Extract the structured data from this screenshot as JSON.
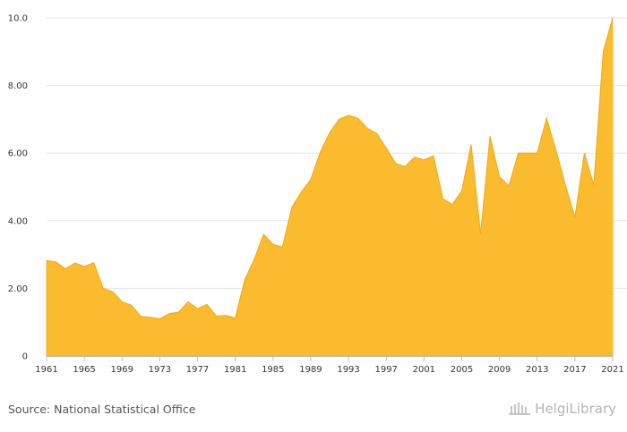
{
  "chart_data": {
    "type": "area",
    "title": "",
    "xlabel": "",
    "ylabel": "",
    "x": [
      1961,
      1962,
      1963,
      1964,
      1965,
      1966,
      1967,
      1968,
      1969,
      1970,
      1971,
      1972,
      1973,
      1974,
      1975,
      1976,
      1977,
      1978,
      1979,
      1980,
      1981,
      1982,
      1983,
      1984,
      1985,
      1986,
      1987,
      1988,
      1989,
      1990,
      1991,
      1992,
      1993,
      1994,
      1995,
      1996,
      1997,
      1998,
      1999,
      2000,
      2001,
      2002,
      2003,
      2004,
      2005,
      2006,
      2007,
      2008,
      2009,
      2010,
      2011,
      2012,
      2013,
      2014,
      2015,
      2016,
      2017,
      2018,
      2019,
      2020,
      2021
    ],
    "values": [
      2.82,
      2.78,
      2.58,
      2.75,
      2.65,
      2.76,
      2.0,
      1.9,
      1.6,
      1.5,
      1.17,
      1.14,
      1.1,
      1.25,
      1.3,
      1.6,
      1.4,
      1.52,
      1.18,
      1.2,
      1.12,
      2.25,
      2.85,
      3.6,
      3.3,
      3.22,
      4.4,
      4.85,
      5.22,
      6.02,
      6.6,
      7.0,
      7.12,
      7.03,
      6.73,
      6.58,
      6.15,
      5.7,
      5.6,
      5.88,
      5.8,
      5.92,
      4.65,
      4.48,
      4.88,
      6.25,
      3.6,
      6.5,
      5.3,
      5.03,
      6.0,
      6.0,
      6.0,
      7.03,
      6.07,
      5.05,
      4.1,
      6.0,
      5.05,
      9.0,
      10.0
    ],
    "x_ticks": [
      "1961",
      "1965",
      "1969",
      "1973",
      "1977",
      "1981",
      "1985",
      "1989",
      "1993",
      "1997",
      "2001",
      "2005",
      "2009",
      "2013",
      "2017",
      "2021"
    ],
    "y_ticks": [
      "0",
      "2.00",
      "4.00",
      "6.00",
      "8.00",
      "10.0"
    ],
    "ylim": [
      0,
      10
    ],
    "xlim": [
      1961,
      2021
    ],
    "grid": "horizontal",
    "legend": "none",
    "colors": {
      "fill": "#fbbb2e",
      "stroke": "#f0ac14",
      "grid": "#e6e6e6",
      "axis": "#bbbbbb"
    }
  },
  "footer": {
    "source": "Source: National Statistical Office",
    "logo_text": "HelgiLibrary",
    "logo_icon": "library-building-icon"
  }
}
